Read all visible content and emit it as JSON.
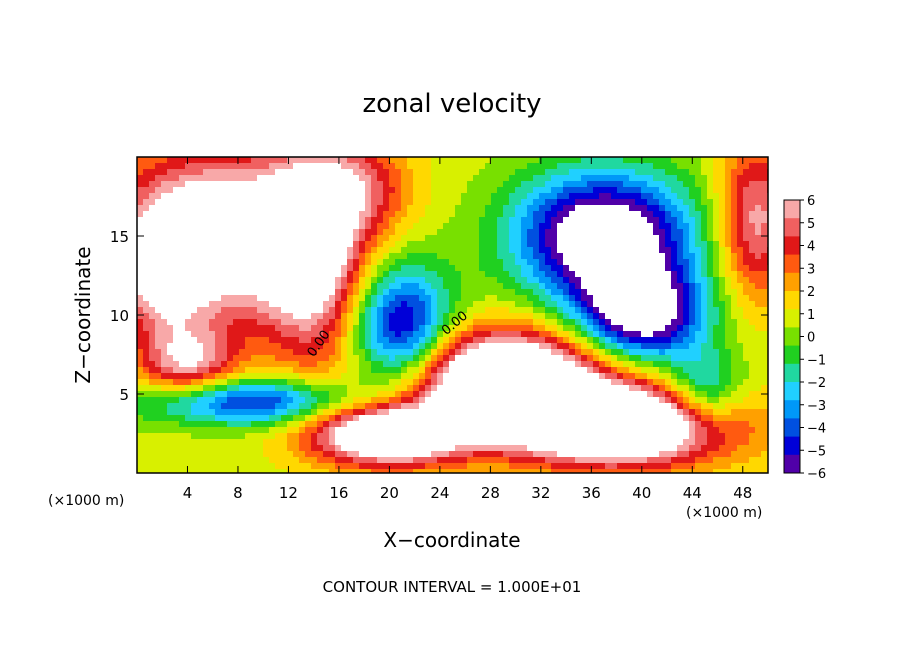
{
  "chart_data": {
    "type": "heatmap",
    "title": "zonal velocity",
    "xlabel": "X−coordinate",
    "ylabel": "Z−coordinate",
    "x_unit_label_left": "(×1000 m)",
    "x_unit_label_right": "(×1000 m)",
    "xlim": [
      0,
      50
    ],
    "ylim": [
      0,
      20
    ],
    "x_ticks": [
      4,
      8,
      12,
      16,
      20,
      24,
      28,
      32,
      36,
      40,
      44,
      48
    ],
    "y_ticks": [
      5,
      10,
      15
    ],
    "colorbar": {
      "min": -6,
      "max": 6,
      "ticks": [
        "6",
        "5",
        "4",
        "3",
        "2",
        "1",
        "0",
        "−1",
        "−2",
        "−3",
        "−4",
        "−5",
        "−6"
      ],
      "colors": [
        "#f8a8a8",
        "#f06060",
        "#e01818",
        "#ff5a10",
        "#ffa000",
        "#ffd800",
        "#d8f000",
        "#78e000",
        "#20d020",
        "#20d8a0",
        "#20d0ff",
        "#0098f8",
        "#0050e0",
        "#0000d8",
        "#5000a8"
      ]
    },
    "contour_labels": [
      "0.00",
      "0.00"
    ],
    "contour_interval_text": "CONTOUR INTERVAL = 1.000E+01",
    "out_of_range_color": "#ffffff"
  }
}
